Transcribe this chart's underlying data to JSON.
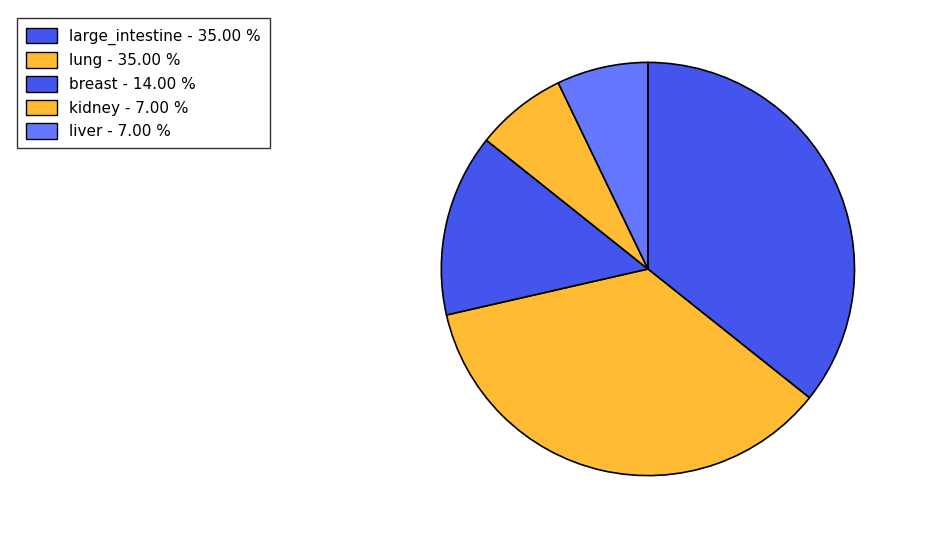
{
  "labels": [
    "large_intestine",
    "lung",
    "breast",
    "kidney",
    "liver"
  ],
  "values": [
    35.0,
    35.0,
    14.0,
    7.0,
    7.0
  ],
  "colors": [
    "#4455ee",
    "#ffbb33",
    "#4455ee",
    "#ffbb33",
    "#6677ff"
  ],
  "legend_labels": [
    "large_intestine - 35.00 %",
    "lung - 35.00 %",
    "breast - 14.00 %",
    "kidney - 7.00 %",
    "liver - 7.00 %"
  ],
  "startangle": 90,
  "background_color": "#ffffff",
  "edgecolor": "#000000",
  "linewidth": 1.2
}
